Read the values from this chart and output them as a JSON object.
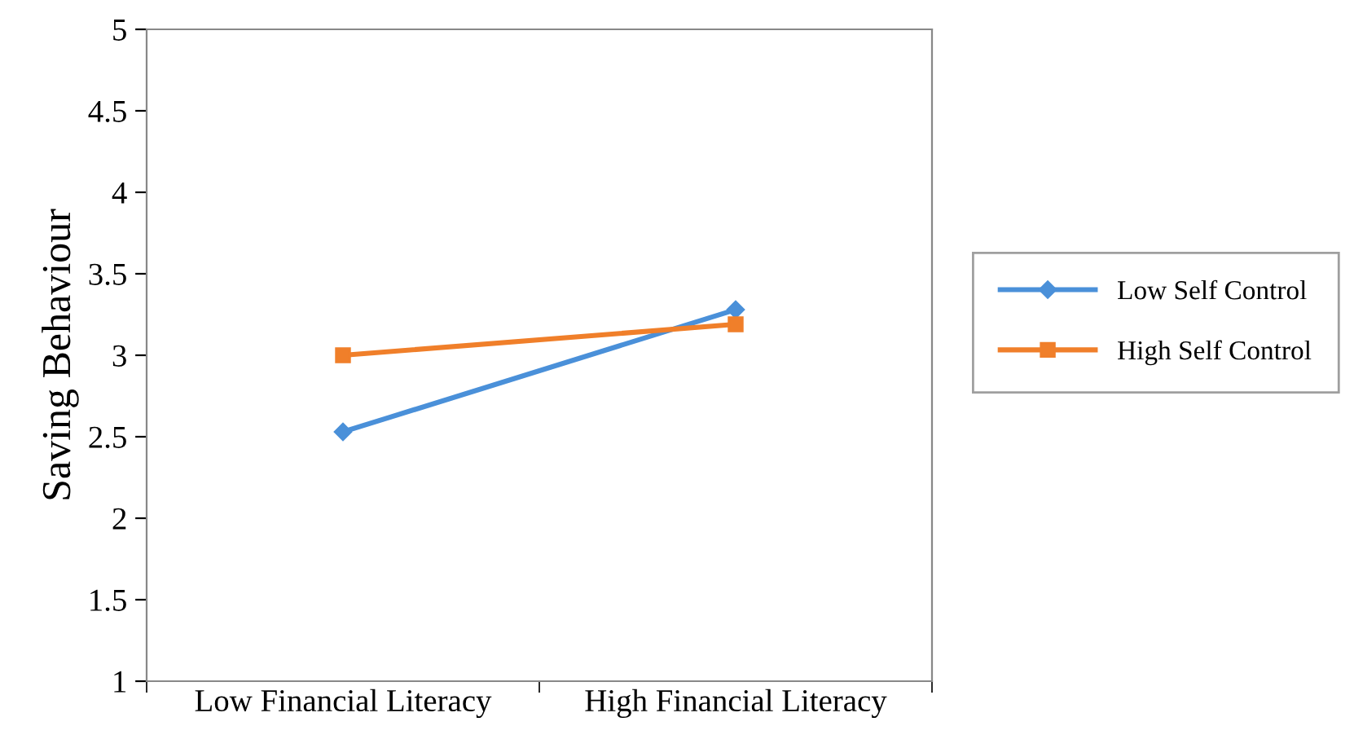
{
  "chart_data": {
    "type": "line",
    "ylabel": "Saving Behaviour",
    "categories": [
      "Low Financial Literacy",
      "High Financial Literacy"
    ],
    "series": [
      {
        "name": "Low Self Control",
        "color": "#4a90d9",
        "values": [
          2.53,
          3.28
        ],
        "marker": "diamond"
      },
      {
        "name": "High Self Control",
        "color": "#f07f2a",
        "values": [
          3.0,
          3.19
        ],
        "marker": "square"
      }
    ],
    "ylim": [
      1,
      5
    ],
    "yticks": [
      1,
      1.5,
      2,
      2.5,
      3,
      3.5,
      4,
      4.5,
      5
    ],
    "grid": false,
    "legend": "right",
    "line_style": "solid"
  }
}
